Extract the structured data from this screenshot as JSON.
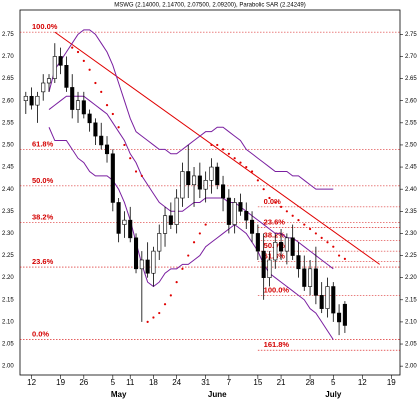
{
  "chart_data": {
    "type": "candlestick",
    "title": "MSWG (2.14000, 2.14700, 2.07500, 2.09200), Parabolic SAR (2.24249)",
    "x": [
      0,
      1,
      2,
      3,
      4,
      5,
      6,
      7,
      8,
      9,
      10,
      11,
      12,
      13,
      14,
      15,
      16,
      17,
      18,
      19,
      20,
      21,
      22,
      23,
      24,
      25,
      26,
      27,
      28,
      29,
      30,
      31,
      32,
      33,
      34,
      35,
      36,
      37,
      38,
      39,
      40,
      41,
      42,
      43,
      44,
      45,
      46,
      47,
      48,
      49,
      50,
      51,
      52,
      53,
      54,
      55
    ],
    "open": [
      2.6,
      2.61,
      2.59,
      2.62,
      2.64,
      2.65,
      2.7,
      2.68,
      2.63,
      2.58,
      2.6,
      2.57,
      2.55,
      2.52,
      2.5,
      2.48,
      2.37,
      2.32,
      2.33,
      2.29,
      2.22,
      2.24,
      2.21,
      2.26,
      2.3,
      2.34,
      2.32,
      2.38,
      2.44,
      2.41,
      2.43,
      2.4,
      2.42,
      2.45,
      2.41,
      2.38,
      2.32,
      2.37,
      2.35,
      2.33,
      2.3,
      2.26,
      2.2,
      2.24,
      2.28,
      2.26,
      2.29,
      2.25,
      2.22,
      2.18,
      2.22,
      2.16,
      2.13,
      2.18,
      2.12,
      2.14
    ],
    "high": [
      2.62,
      2.63,
      2.62,
      2.66,
      2.66,
      2.73,
      2.72,
      2.7,
      2.66,
      2.62,
      2.62,
      2.58,
      2.56,
      2.55,
      2.52,
      2.49,
      2.38,
      2.35,
      2.36,
      2.3,
      2.26,
      2.28,
      2.27,
      2.32,
      2.36,
      2.37,
      2.4,
      2.46,
      2.5,
      2.45,
      2.46,
      2.44,
      2.47,
      2.46,
      2.43,
      2.4,
      2.38,
      2.39,
      2.37,
      2.35,
      2.32,
      2.3,
      2.26,
      2.3,
      2.31,
      2.3,
      2.32,
      2.28,
      2.25,
      2.24,
      2.27,
      2.19,
      2.2,
      2.19,
      2.14,
      2.147
    ],
    "low": [
      2.57,
      2.58,
      2.55,
      2.6,
      2.62,
      2.64,
      2.66,
      2.62,
      2.56,
      2.55,
      2.56,
      2.53,
      2.5,
      2.49,
      2.46,
      2.35,
      2.28,
      2.29,
      2.28,
      2.21,
      2.1,
      2.2,
      2.18,
      2.24,
      2.27,
      2.31,
      2.3,
      2.36,
      2.38,
      2.36,
      2.38,
      2.37,
      2.39,
      2.4,
      2.35,
      2.3,
      2.3,
      2.34,
      2.31,
      2.28,
      2.24,
      2.15,
      2.18,
      2.22,
      2.24,
      2.23,
      2.24,
      2.2,
      2.17,
      2.16,
      2.14,
      2.12,
      2.11,
      2.1,
      2.07,
      2.075
    ],
    "close": [
      2.61,
      2.59,
      2.61,
      2.64,
      2.65,
      2.7,
      2.68,
      2.63,
      2.58,
      2.6,
      2.57,
      2.55,
      2.52,
      2.5,
      2.48,
      2.37,
      2.3,
      2.33,
      2.29,
      2.22,
      2.24,
      2.21,
      2.26,
      2.3,
      2.34,
      2.32,
      2.38,
      2.44,
      2.41,
      2.43,
      2.4,
      2.42,
      2.45,
      2.41,
      2.38,
      2.32,
      2.37,
      2.35,
      2.33,
      2.3,
      2.26,
      2.2,
      2.24,
      2.28,
      2.26,
      2.29,
      2.25,
      2.22,
      2.18,
      2.22,
      2.16,
      2.13,
      2.18,
      2.12,
      2.1,
      2.092
    ],
    "series": [
      {
        "name": "Bollinger Upper",
        "color": "#7a1fa0",
        "values": [
          null,
          null,
          null,
          null,
          2.62,
          2.67,
          2.69,
          2.71,
          2.73,
          2.75,
          2.76,
          2.76,
          2.75,
          2.73,
          2.71,
          2.68,
          2.64,
          2.6,
          2.56,
          2.53,
          2.52,
          2.51,
          2.5,
          2.49,
          2.49,
          2.48,
          2.48,
          2.49,
          2.5,
          2.51,
          2.52,
          2.53,
          2.53,
          2.54,
          2.54,
          2.53,
          2.52,
          2.51,
          2.49,
          2.48,
          2.47,
          2.46,
          2.45,
          2.44,
          2.44,
          2.44,
          2.43,
          2.43,
          2.42,
          2.41,
          2.4,
          2.4,
          2.4,
          2.4,
          null,
          null
        ]
      },
      {
        "name": "Bollinger Middle",
        "color": "#7a1fa0",
        "values": [
          null,
          null,
          null,
          null,
          2.58,
          2.59,
          2.6,
          2.61,
          2.61,
          2.61,
          2.61,
          2.6,
          2.59,
          2.58,
          2.57,
          2.55,
          2.53,
          2.51,
          2.48,
          2.46,
          2.43,
          2.41,
          2.39,
          2.37,
          2.36,
          2.35,
          2.35,
          2.35,
          2.36,
          2.37,
          2.37,
          2.38,
          2.38,
          2.38,
          2.38,
          2.37,
          2.37,
          2.36,
          2.35,
          2.34,
          2.33,
          2.32,
          2.31,
          2.3,
          2.3,
          2.29,
          2.29,
          2.28,
          2.27,
          2.26,
          2.25,
          2.24,
          2.23,
          2.22,
          null,
          null
        ]
      },
      {
        "name": "Bollinger Lower",
        "color": "#7a1fa0",
        "values": [
          null,
          null,
          null,
          null,
          2.54,
          2.51,
          2.51,
          2.51,
          2.49,
          2.47,
          2.46,
          2.44,
          2.43,
          2.43,
          2.43,
          2.42,
          2.4,
          2.37,
          2.33,
          2.28,
          2.23,
          2.19,
          2.18,
          2.19,
          2.21,
          2.22,
          2.22,
          2.23,
          2.23,
          2.24,
          2.25,
          2.27,
          2.28,
          2.29,
          2.3,
          2.31,
          2.32,
          2.31,
          2.3,
          2.28,
          2.26,
          2.23,
          2.21,
          2.2,
          2.19,
          2.18,
          2.17,
          2.16,
          2.15,
          2.13,
          2.12,
          2.1,
          2.08,
          2.06,
          null,
          null
        ]
      }
    ],
    "sar": {
      "color": "#e00000",
      "values": [
        null,
        null,
        null,
        null,
        null,
        null,
        null,
        null,
        2.72,
        2.71,
        2.69,
        2.67,
        2.64,
        2.62,
        2.59,
        2.57,
        2.54,
        2.5,
        2.47,
        2.44,
        2.43,
        2.1,
        2.11,
        2.12,
        2.14,
        2.16,
        2.19,
        2.22,
        2.25,
        2.28,
        2.3,
        2.32,
        2.5,
        2.5,
        2.49,
        2.48,
        2.47,
        2.46,
        2.45,
        2.44,
        2.42,
        2.4,
        2.38,
        2.37,
        2.36,
        2.35,
        2.34,
        2.33,
        2.32,
        2.31,
        2.3,
        2.29,
        2.28,
        2.27,
        2.25,
        2.24249
      ]
    },
    "trendline": {
      "color": "#e00000",
      "x": [
        5,
        61
      ],
      "y": [
        2.755,
        2.23
      ]
    },
    "fibonacci": [
      {
        "levels": [
          {
            "label": "100.0%",
            "price": 2.755
          },
          {
            "label": "61.8%",
            "price": 2.49
          },
          {
            "label": "50.0%",
            "price": 2.4075
          },
          {
            "label": "38.2%",
            "price": 2.325
          },
          {
            "label": "23.6%",
            "price": 2.224
          },
          {
            "label": "0.0%",
            "price": 2.06
          }
        ]
      },
      {
        "levels": [
          {
            "label": "0.0%",
            "price": 2.36
          },
          {
            "label": "23.6%",
            "price": 2.313
          },
          {
            "label": "38.2%",
            "price": 2.284
          },
          {
            "label": "50.0%",
            "price": 2.26
          },
          {
            "label": "61.8%",
            "price": 2.236
          },
          {
            "label": "100.0%",
            "price": 2.16
          },
          {
            "label": "161.8%",
            "price": 2.036
          }
        ]
      }
    ],
    "months": [
      {
        "label": "May",
        "x": 16
      },
      {
        "label": "June",
        "x": 33
      },
      {
        "label": "July",
        "x": 53
      }
    ],
    "xlim": [
      -1,
      64.5
    ],
    "xticks": [
      {
        "value": 1,
        "label": "12"
      },
      {
        "value": 6,
        "label": "19"
      },
      {
        "value": 10,
        "label": "26"
      },
      {
        "value": 15,
        "label": "5"
      },
      {
        "value": 18,
        "label": "11"
      },
      {
        "value": 22,
        "label": "18"
      },
      {
        "value": 26,
        "label": "24"
      },
      {
        "value": 31,
        "label": "31"
      },
      {
        "value": 35,
        "label": "7"
      },
      {
        "value": 40,
        "label": "15"
      },
      {
        "value": 44,
        "label": "21"
      },
      {
        "value": 49,
        "label": "28"
      },
      {
        "value": 53,
        "label": "5"
      },
      {
        "value": 58,
        "label": "12"
      },
      {
        "value": 63,
        "label": "19"
      }
    ],
    "ylim": [
      1.98,
      2.805
    ],
    "yticks": [
      {
        "value": 2.0,
        "label": "2.00"
      },
      {
        "value": 2.05,
        "label": "2.05"
      },
      {
        "value": 2.1,
        "label": "2.10"
      },
      {
        "value": 2.15,
        "label": "2.15"
      },
      {
        "value": 2.2,
        "label": "2.20"
      },
      {
        "value": 2.25,
        "label": "2.25"
      },
      {
        "value": 2.3,
        "label": "2.30"
      },
      {
        "value": 2.35,
        "label": "2.35"
      },
      {
        "value": 2.4,
        "label": "2.40"
      },
      {
        "value": 2.45,
        "label": "2.45"
      },
      {
        "value": 2.5,
        "label": "2.50"
      },
      {
        "value": 2.55,
        "label": "2.55"
      },
      {
        "value": 2.6,
        "label": "2.60"
      },
      {
        "value": 2.65,
        "label": "2.65"
      },
      {
        "value": 2.7,
        "label": "2.70"
      },
      {
        "value": 2.75,
        "label": "2.75"
      }
    ],
    "up_color": "#ffffff",
    "down_color": "#000000"
  }
}
